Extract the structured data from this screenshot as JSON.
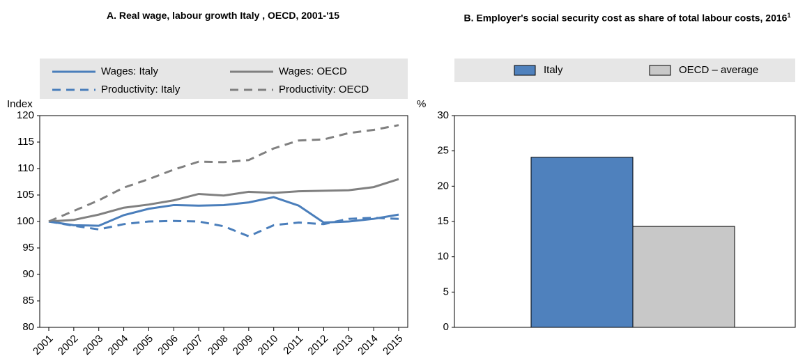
{
  "chart_data": [
    {
      "type": "line",
      "title": "A. Real wage, labour growth Italy , OECD, 2001-'15",
      "y_label": "Index",
      "x": [
        2001,
        2002,
        2003,
        2004,
        2005,
        2006,
        2007,
        2008,
        2009,
        2010,
        2011,
        2012,
        2013,
        2014,
        2015
      ],
      "xlim": [
        2001,
        2015
      ],
      "series": [
        {
          "name": "Wages: Italy",
          "color": "#4a7ebb",
          "dash": false,
          "values": [
            100,
            99.3,
            99.2,
            101.2,
            102.4,
            103.1,
            103.0,
            103.1,
            103.6,
            104.6,
            103.0,
            99.8,
            100.0,
            100.5,
            101.3
          ]
        },
        {
          "name": "Wages: OECD",
          "color": "#808080",
          "dash": false,
          "values": [
            100,
            100.3,
            101.3,
            102.6,
            103.2,
            104.0,
            105.2,
            104.9,
            105.6,
            105.4,
            105.7,
            105.8,
            105.9,
            106.5,
            108.0
          ]
        },
        {
          "name": "Productivity: Italy",
          "color": "#4a7ebb",
          "dash": true,
          "values": [
            100,
            99.2,
            98.5,
            99.5,
            100.0,
            100.1,
            100.0,
            99.1,
            97.2,
            99.3,
            99.8,
            99.5,
            100.5,
            100.7,
            100.5
          ]
        },
        {
          "name": "Productivity: OECD",
          "color": "#808080",
          "dash": true,
          "values": [
            100,
            102.0,
            104.0,
            106.4,
            108.0,
            109.8,
            111.3,
            111.2,
            111.6,
            113.8,
            115.3,
            115.5,
            116.7,
            117.3,
            118.2
          ]
        }
      ],
      "ylim": [
        80,
        120
      ],
      "yticks": [
        80,
        85,
        90,
        95,
        100,
        105,
        110,
        115,
        120
      ]
    },
    {
      "type": "bar",
      "title": "B. Employer's social security cost as share of total labour costs, 2016",
      "title_note": "1",
      "y_label": "%",
      "series": [
        {
          "name": "Italy",
          "color": "#4f81bd",
          "values": [
            24.1
          ]
        },
        {
          "name": "OECD – average",
          "color": "#c8c8c8",
          "values": [
            14.3
          ]
        }
      ],
      "ylim": [
        0,
        30
      ],
      "yticks": [
        0,
        5,
        10,
        15,
        20,
        25,
        30
      ]
    }
  ]
}
